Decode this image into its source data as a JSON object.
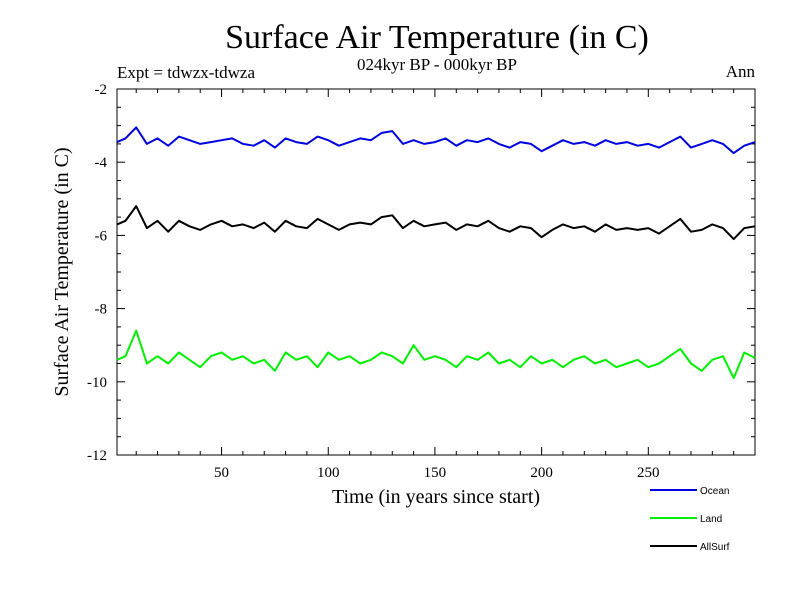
{
  "header": {
    "title": "Surface Air Temperature (in C)",
    "subtitle": "024kyr BP - 000kyr BP",
    "expt_label": "Expt = tdwzx-tdwza",
    "season_label": "Ann"
  },
  "colors": {
    "ocean": "#0000dd",
    "land": "#00ee00",
    "allsurf": "#000000"
  },
  "chart_data": {
    "type": "line",
    "title": "Surface Air Temperature (in C)",
    "subtitle": "024kyr BP - 000kyr BP",
    "xlabel": "Time (in years since start)",
    "ylabel": "Surface Air Temperature (in C)",
    "xlim": [
      1,
      300
    ],
    "ylim": [
      -12,
      -2
    ],
    "xticks": [
      50,
      100,
      150,
      200,
      250
    ],
    "yticks": [
      -2,
      -4,
      -6,
      -8,
      -10,
      -12
    ],
    "legend_position": "bottom-right",
    "series": [
      {
        "name": "Ocean",
        "color": "#0000dd",
        "x": [
          1,
          5,
          10,
          15,
          20,
          25,
          30,
          35,
          40,
          45,
          50,
          55,
          60,
          65,
          70,
          75,
          80,
          85,
          90,
          95,
          100,
          105,
          110,
          115,
          120,
          125,
          130,
          135,
          140,
          145,
          150,
          155,
          160,
          165,
          170,
          175,
          180,
          185,
          190,
          195,
          200,
          205,
          210,
          215,
          220,
          225,
          230,
          235,
          240,
          245,
          250,
          255,
          260,
          265,
          270,
          275,
          280,
          285,
          290,
          295,
          300
        ],
        "values": [
          -3.45,
          -3.35,
          -3.05,
          -3.5,
          -3.35,
          -3.55,
          -3.3,
          -3.4,
          -3.5,
          -3.45,
          -3.4,
          -3.35,
          -3.5,
          -3.55,
          -3.4,
          -3.6,
          -3.35,
          -3.45,
          -3.5,
          -3.3,
          -3.4,
          -3.55,
          -3.45,
          -3.35,
          -3.4,
          -3.2,
          -3.15,
          -3.5,
          -3.4,
          -3.5,
          -3.45,
          -3.35,
          -3.55,
          -3.4,
          -3.45,
          -3.35,
          -3.5,
          -3.6,
          -3.45,
          -3.5,
          -3.7,
          -3.55,
          -3.4,
          -3.5,
          -3.45,
          -3.55,
          -3.4,
          -3.5,
          -3.45,
          -3.55,
          -3.5,
          -3.6,
          -3.45,
          -3.3,
          -3.6,
          -3.5,
          -3.4,
          -3.5,
          -3.75,
          -3.55,
          -3.45
        ]
      },
      {
        "name": "Land",
        "color": "#00ee00",
        "x": [
          1,
          5,
          10,
          15,
          20,
          25,
          30,
          35,
          40,
          45,
          50,
          55,
          60,
          65,
          70,
          75,
          80,
          85,
          90,
          95,
          100,
          105,
          110,
          115,
          120,
          125,
          130,
          135,
          140,
          145,
          150,
          155,
          160,
          165,
          170,
          175,
          180,
          185,
          190,
          195,
          200,
          205,
          210,
          215,
          220,
          225,
          230,
          235,
          240,
          245,
          250,
          255,
          260,
          265,
          270,
          275,
          280,
          285,
          290,
          295,
          300
        ],
        "values": [
          -9.4,
          -9.3,
          -8.6,
          -9.5,
          -9.3,
          -9.5,
          -9.2,
          -9.4,
          -9.6,
          -9.3,
          -9.2,
          -9.4,
          -9.3,
          -9.5,
          -9.4,
          -9.7,
          -9.2,
          -9.4,
          -9.3,
          -9.6,
          -9.2,
          -9.4,
          -9.3,
          -9.5,
          -9.4,
          -9.2,
          -9.3,
          -9.5,
          -9.0,
          -9.4,
          -9.3,
          -9.4,
          -9.6,
          -9.3,
          -9.4,
          -9.2,
          -9.5,
          -9.4,
          -9.6,
          -9.3,
          -9.5,
          -9.4,
          -9.6,
          -9.4,
          -9.3,
          -9.5,
          -9.4,
          -9.6,
          -9.5,
          -9.4,
          -9.6,
          -9.5,
          -9.3,
          -9.1,
          -9.5,
          -9.7,
          -9.4,
          -9.3,
          -9.9,
          -9.2,
          -9.35
        ]
      },
      {
        "name": "AllSurf",
        "color": "#000000",
        "x": [
          1,
          5,
          10,
          15,
          20,
          25,
          30,
          35,
          40,
          45,
          50,
          55,
          60,
          65,
          70,
          75,
          80,
          85,
          90,
          95,
          100,
          105,
          110,
          115,
          120,
          125,
          130,
          135,
          140,
          145,
          150,
          155,
          160,
          165,
          170,
          175,
          180,
          185,
          190,
          195,
          200,
          205,
          210,
          215,
          220,
          225,
          230,
          235,
          240,
          245,
          250,
          255,
          260,
          265,
          270,
          275,
          280,
          285,
          290,
          295,
          300
        ],
        "values": [
          -5.7,
          -5.6,
          -5.2,
          -5.8,
          -5.6,
          -5.9,
          -5.6,
          -5.75,
          -5.85,
          -5.7,
          -5.6,
          -5.75,
          -5.7,
          -5.8,
          -5.65,
          -5.9,
          -5.6,
          -5.75,
          -5.8,
          -5.55,
          -5.7,
          -5.85,
          -5.7,
          -5.65,
          -5.7,
          -5.5,
          -5.45,
          -5.8,
          -5.6,
          -5.75,
          -5.7,
          -5.65,
          -5.85,
          -5.7,
          -5.75,
          -5.6,
          -5.8,
          -5.9,
          -5.75,
          -5.8,
          -6.05,
          -5.85,
          -5.7,
          -5.8,
          -5.75,
          -5.9,
          -5.7,
          -5.85,
          -5.8,
          -5.85,
          -5.8,
          -5.95,
          -5.75,
          -5.55,
          -5.9,
          -5.85,
          -5.7,
          -5.8,
          -6.1,
          -5.8,
          -5.75
        ]
      }
    ]
  }
}
